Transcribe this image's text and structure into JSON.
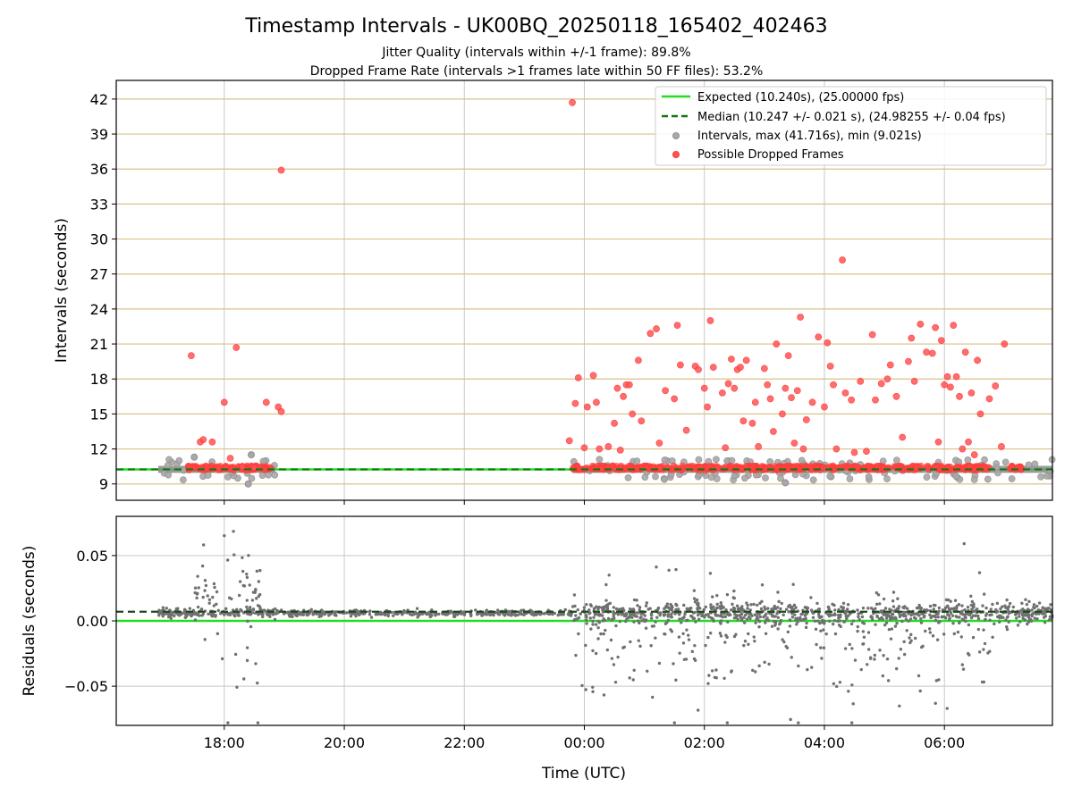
{
  "figure": {
    "title": "Timestamp Intervals - UK00BQ_20250118_165402_402463",
    "subtitle_1": "Jitter Quality (intervals within +/-1 frame): 89.8%",
    "subtitle_2": "Dropped Frame Rate (intervals >1 frames late within 50 FF files): 53.2%"
  },
  "colors": {
    "expected": "#22dd22",
    "median": "#117711",
    "intervals": "#a8a8a8",
    "dropped": "#ff3333",
    "residual": "#707070",
    "hgrid_top": "#d8c28a",
    "grid": "#c8c8c8"
  },
  "chart_data": [
    {
      "type": "scatter",
      "panel": "intervals",
      "ylabel": "Intervals (seconds)",
      "xlim_hours": [
        -7.8,
        7.8
      ],
      "ylim": [
        7.6,
        43.6
      ],
      "yticks": [
        9,
        12,
        15,
        18,
        21,
        24,
        27,
        30,
        33,
        36,
        39,
        42
      ],
      "ytick_labels": [
        "9",
        "12",
        "15",
        "18",
        "21",
        "24",
        "27",
        "30",
        "33",
        "36",
        "39",
        "42"
      ],
      "grid": "y",
      "legend": {
        "placement": "top-right",
        "entries": [
          {
            "label": "Expected (10.240s), (25.00000 fps)",
            "style": "line"
          },
          {
            "label": "Median (10.247 +/- 0.021 s), (24.98255 +/- 0.04 fps)",
            "style": "dashed"
          },
          {
            "label": "Intervals, max (41.716s), min (9.021s)",
            "style": "marker-grey"
          },
          {
            "label": "Possible Dropped Frames",
            "style": "marker-red"
          }
        ]
      },
      "expected_value": 10.24,
      "median_value": 10.247,
      "normal_ranges_hours": [
        [
          -7.1,
          -5.15
        ],
        [
          -0.2,
          7.8
        ]
      ],
      "dropped_frames": [
        [
          -6.55,
          20.0
        ],
        [
          -6.4,
          12.6
        ],
        [
          -6.35,
          12.8
        ],
        [
          -6.2,
          12.6
        ],
        [
          -6.0,
          16.0
        ],
        [
          -5.9,
          11.2
        ],
        [
          -5.8,
          20.7
        ],
        [
          -5.7,
          10.5
        ],
        [
          -5.5,
          10.4
        ],
        [
          -5.3,
          16.0
        ],
        [
          -5.1,
          15.6
        ],
        [
          -5.05,
          15.2
        ],
        [
          -5.05,
          35.9
        ],
        [
          -0.2,
          41.7
        ],
        [
          -0.25,
          12.7
        ],
        [
          -0.15,
          15.9
        ],
        [
          -0.1,
          18.1
        ],
        [
          0.0,
          12.1
        ],
        [
          0.05,
          15.6
        ],
        [
          0.15,
          18.3
        ],
        [
          0.2,
          16.0
        ],
        [
          0.25,
          12.0
        ],
        [
          0.4,
          12.2
        ],
        [
          0.5,
          14.2
        ],
        [
          0.55,
          17.2
        ],
        [
          0.6,
          11.9
        ],
        [
          0.65,
          16.5
        ],
        [
          0.7,
          17.5
        ],
        [
          0.75,
          17.5
        ],
        [
          0.8,
          15.0
        ],
        [
          0.9,
          19.6
        ],
        [
          0.95,
          14.4
        ],
        [
          1.1,
          21.9
        ],
        [
          1.2,
          22.3
        ],
        [
          1.25,
          12.5
        ],
        [
          1.35,
          17.0
        ],
        [
          1.5,
          16.3
        ],
        [
          1.55,
          22.6
        ],
        [
          1.6,
          19.2
        ],
        [
          1.7,
          13.6
        ],
        [
          1.85,
          19.1
        ],
        [
          1.9,
          18.8
        ],
        [
          2.0,
          17.2
        ],
        [
          2.05,
          15.6
        ],
        [
          2.1,
          23.0
        ],
        [
          2.15,
          19.0
        ],
        [
          2.3,
          16.8
        ],
        [
          2.35,
          12.1
        ],
        [
          2.4,
          17.6
        ],
        [
          2.45,
          19.7
        ],
        [
          2.5,
          17.2
        ],
        [
          2.55,
          18.8
        ],
        [
          2.6,
          19.0
        ],
        [
          2.65,
          14.4
        ],
        [
          2.7,
          19.6
        ],
        [
          2.8,
          14.2
        ],
        [
          2.85,
          16.0
        ],
        [
          2.9,
          12.2
        ],
        [
          3.0,
          18.9
        ],
        [
          3.05,
          17.5
        ],
        [
          3.1,
          16.3
        ],
        [
          3.15,
          13.5
        ],
        [
          3.2,
          21.0
        ],
        [
          3.3,
          15.0
        ],
        [
          3.35,
          17.2
        ],
        [
          3.4,
          20.0
        ],
        [
          3.45,
          16.4
        ],
        [
          3.5,
          12.5
        ],
        [
          3.55,
          17.0
        ],
        [
          3.6,
          23.3
        ],
        [
          3.65,
          12.0
        ],
        [
          3.7,
          14.5
        ],
        [
          3.8,
          16.0
        ],
        [
          3.9,
          21.6
        ],
        [
          4.0,
          15.6
        ],
        [
          4.05,
          21.1
        ],
        [
          4.1,
          19.1
        ],
        [
          4.15,
          17.5
        ],
        [
          4.2,
          12.0
        ],
        [
          4.3,
          28.2
        ],
        [
          4.35,
          16.8
        ],
        [
          4.45,
          16.2
        ],
        [
          4.5,
          11.7
        ],
        [
          4.6,
          17.8
        ],
        [
          4.7,
          11.8
        ],
        [
          4.8,
          21.8
        ],
        [
          4.85,
          16.2
        ],
        [
          4.95,
          17.6
        ],
        [
          5.05,
          18.0
        ],
        [
          5.1,
          19.2
        ],
        [
          5.2,
          16.5
        ],
        [
          5.3,
          13.0
        ],
        [
          5.4,
          19.5
        ],
        [
          5.45,
          21.5
        ],
        [
          5.5,
          17.8
        ],
        [
          5.6,
          22.7
        ],
        [
          5.7,
          20.3
        ],
        [
          5.8,
          20.2
        ],
        [
          5.85,
          22.4
        ],
        [
          5.9,
          12.6
        ],
        [
          5.95,
          21.3
        ],
        [
          6.0,
          17.5
        ],
        [
          6.05,
          18.2
        ],
        [
          6.1,
          17.3
        ],
        [
          6.15,
          22.6
        ],
        [
          6.2,
          18.2
        ],
        [
          6.25,
          16.5
        ],
        [
          6.3,
          12.0
        ],
        [
          6.35,
          20.3
        ],
        [
          6.45,
          16.8
        ],
        [
          6.5,
          11.5
        ],
        [
          6.55,
          19.6
        ],
        [
          6.6,
          15.0
        ],
        [
          6.75,
          16.3
        ],
        [
          7.0,
          21.0
        ],
        [
          6.95,
          12.2
        ],
        [
          6.85,
          17.4
        ],
        [
          6.4,
          12.6
        ]
      ]
    },
    {
      "type": "scatter",
      "panel": "residuals",
      "xlabel": "Time (UTC)",
      "ylabel": "Residuals (seconds)",
      "xlim_hours": [
        -7.8,
        7.8
      ],
      "ylim": [
        -0.08,
        0.08
      ],
      "yticks": [
        -0.05,
        0.0,
        0.05
      ],
      "ytick_labels": [
        "−0.05",
        "0.00",
        "0.05"
      ],
      "grid": "both",
      "expected_value": 0.0,
      "median_value": 0.007,
      "xticks_hours": [
        -6,
        -4,
        -2,
        0,
        2,
        4,
        6
      ],
      "xtick_labels": [
        "18:00",
        "20:00",
        "22:00",
        "00:00",
        "02:00",
        "04:00",
        "06:00"
      ]
    }
  ]
}
